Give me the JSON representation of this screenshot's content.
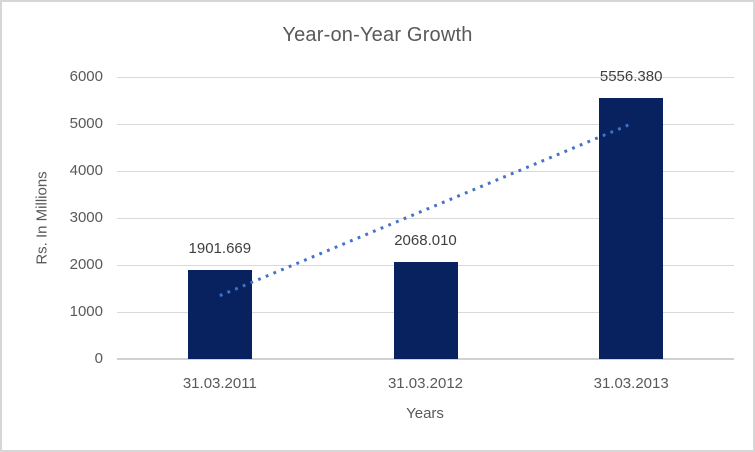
{
  "chart_data": {
    "type": "bar",
    "title": "Year-on-Year Growth",
    "categories": [
      "31.03.2011",
      "31.03.2012",
      "31.03.2013"
    ],
    "values": [
      1901.669,
      2068.01,
      5556.38
    ],
    "data_labels": [
      "1901.669",
      "2068.010",
      "5556.380"
    ],
    "xlabel": "Years",
    "ylabel": "Rs. In Millions",
    "ylim": [
      0,
      6000
    ],
    "yticks": [
      0,
      1000,
      2000,
      3000,
      4000,
      5000,
      6000
    ],
    "grid": true,
    "legend": false,
    "trendline": {
      "type": "linear",
      "style": "dotted"
    }
  },
  "colors": {
    "bar": "#07225f",
    "trendline": "#4472c4",
    "gridline": "#d9d9d9",
    "axisline": "#d1d1d1",
    "title_text": "#595959",
    "axis_text": "#595959",
    "data_label_text": "#404040",
    "border": "#d6d6d6",
    "background": "#ffffff"
  }
}
